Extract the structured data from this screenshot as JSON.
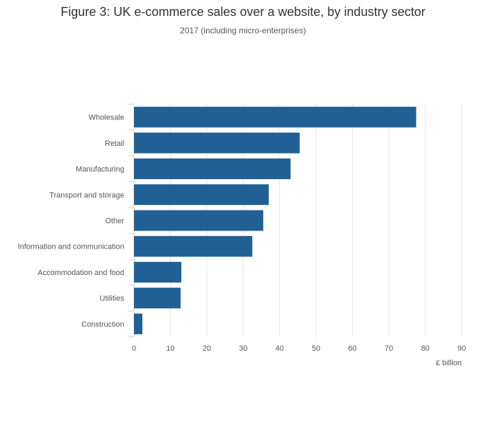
{
  "chart_data": {
    "type": "bar",
    "orientation": "horizontal",
    "title": "Figure 3: UK e-commerce sales over a website, by industry sector",
    "subtitle": "2017 (including micro-enterprises)",
    "categories": [
      "Wholesale",
      "Retail",
      "Manufacturing",
      "Transport and storage",
      "Other",
      "Information and communication",
      "Accommodation and food",
      "Utilities",
      "Construction"
    ],
    "values": [
      77.5,
      45.5,
      43.0,
      37.0,
      35.5,
      32.5,
      13.0,
      12.8,
      2.3
    ],
    "xlabel": "£ billion",
    "ylabel": "",
    "xlim": [
      0,
      90
    ],
    "xticks": [
      0,
      10,
      20,
      30,
      40,
      50,
      60,
      70,
      80,
      90
    ],
    "grid": true,
    "legend": "none",
    "bar_color": "#206095",
    "grid_color": "#e6e6e6"
  }
}
